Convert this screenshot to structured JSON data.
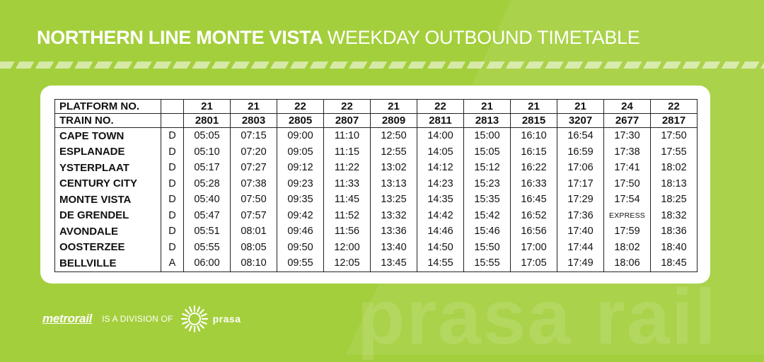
{
  "title": {
    "bold": "NORTHERN LINE MONTE VISTA",
    "light": "WEEKDAY OUTBOUND TIMETABLE"
  },
  "table": {
    "platform_label": "PLATFORM NO.",
    "train_label": "TRAIN NO.",
    "platforms": [
      "21",
      "21",
      "22",
      "22",
      "21",
      "22",
      "21",
      "21",
      "21",
      "24",
      "22"
    ],
    "trains": [
      "2801",
      "2803",
      "2805",
      "2807",
      "2809",
      "2811",
      "2813",
      "2815",
      "3207",
      "2677",
      "2817"
    ],
    "rows": [
      {
        "station": "CAPE TOWN",
        "code": "D",
        "times": [
          "05:05",
          "07:15",
          "09:00",
          "11:10",
          "12:50",
          "14:00",
          "15:00",
          "16:10",
          "16:54",
          "17:30",
          "17:50"
        ]
      },
      {
        "station": "ESPLANADE",
        "code": "D",
        "times": [
          "05:10",
          "07:20",
          "09:05",
          "11:15",
          "12:55",
          "14:05",
          "15:05",
          "16:15",
          "16:59",
          "17:38",
          "17:55"
        ]
      },
      {
        "station": "YSTERPLAAT",
        "code": "D",
        "times": [
          "05:17",
          "07:27",
          "09:12",
          "11:22",
          "13:02",
          "14:12",
          "15:12",
          "16:22",
          "17:06",
          "17:41",
          "18:02"
        ]
      },
      {
        "station": "CENTURY CITY",
        "code": "D",
        "times": [
          "05:28",
          "07:38",
          "09:23",
          "11:33",
          "13:13",
          "14:23",
          "15:23",
          "16:33",
          "17:17",
          "17:50",
          "18:13"
        ]
      },
      {
        "station": "MONTE VISTA",
        "code": "D",
        "times": [
          "05:40",
          "07:50",
          "09:35",
          "11:45",
          "13:25",
          "14:35",
          "15:35",
          "16:45",
          "17:29",
          "17:54",
          "18:25"
        ]
      },
      {
        "station": "DE GRENDEL",
        "code": "D",
        "times": [
          "05:47",
          "07:57",
          "09:42",
          "11:52",
          "13:32",
          "14:42",
          "15:42",
          "16:52",
          "17:36",
          "EXPRESS",
          "18:32"
        ]
      },
      {
        "station": "AVONDALE",
        "code": "D",
        "times": [
          "05:51",
          "08:01",
          "09:46",
          "11:56",
          "13:36",
          "14:46",
          "15:46",
          "16:56",
          "17:40",
          "17:59",
          "18:36"
        ]
      },
      {
        "station": "OOSTERZEE",
        "code": "D",
        "times": [
          "05:55",
          "08:05",
          "09:50",
          "12:00",
          "13:40",
          "14:50",
          "15:50",
          "17:00",
          "17:44",
          "18:02",
          "18:40"
        ]
      },
      {
        "station": "BELLVILLE",
        "code": "A",
        "times": [
          "06:00",
          "08:10",
          "09:55",
          "12:05",
          "13:45",
          "14:55",
          "15:55",
          "17:05",
          "17:49",
          "18:06",
          "18:45"
        ]
      }
    ]
  },
  "footer": {
    "metrorail": "metrorail",
    "division": "IS A DIVISION OF",
    "prasa": "prasa",
    "prasa_icon": "prasa-sun-icon"
  },
  "watermark": "prasa rail",
  "colors": {
    "background": "#a4cf3c",
    "card": "#ffffff",
    "text": "#111111"
  }
}
